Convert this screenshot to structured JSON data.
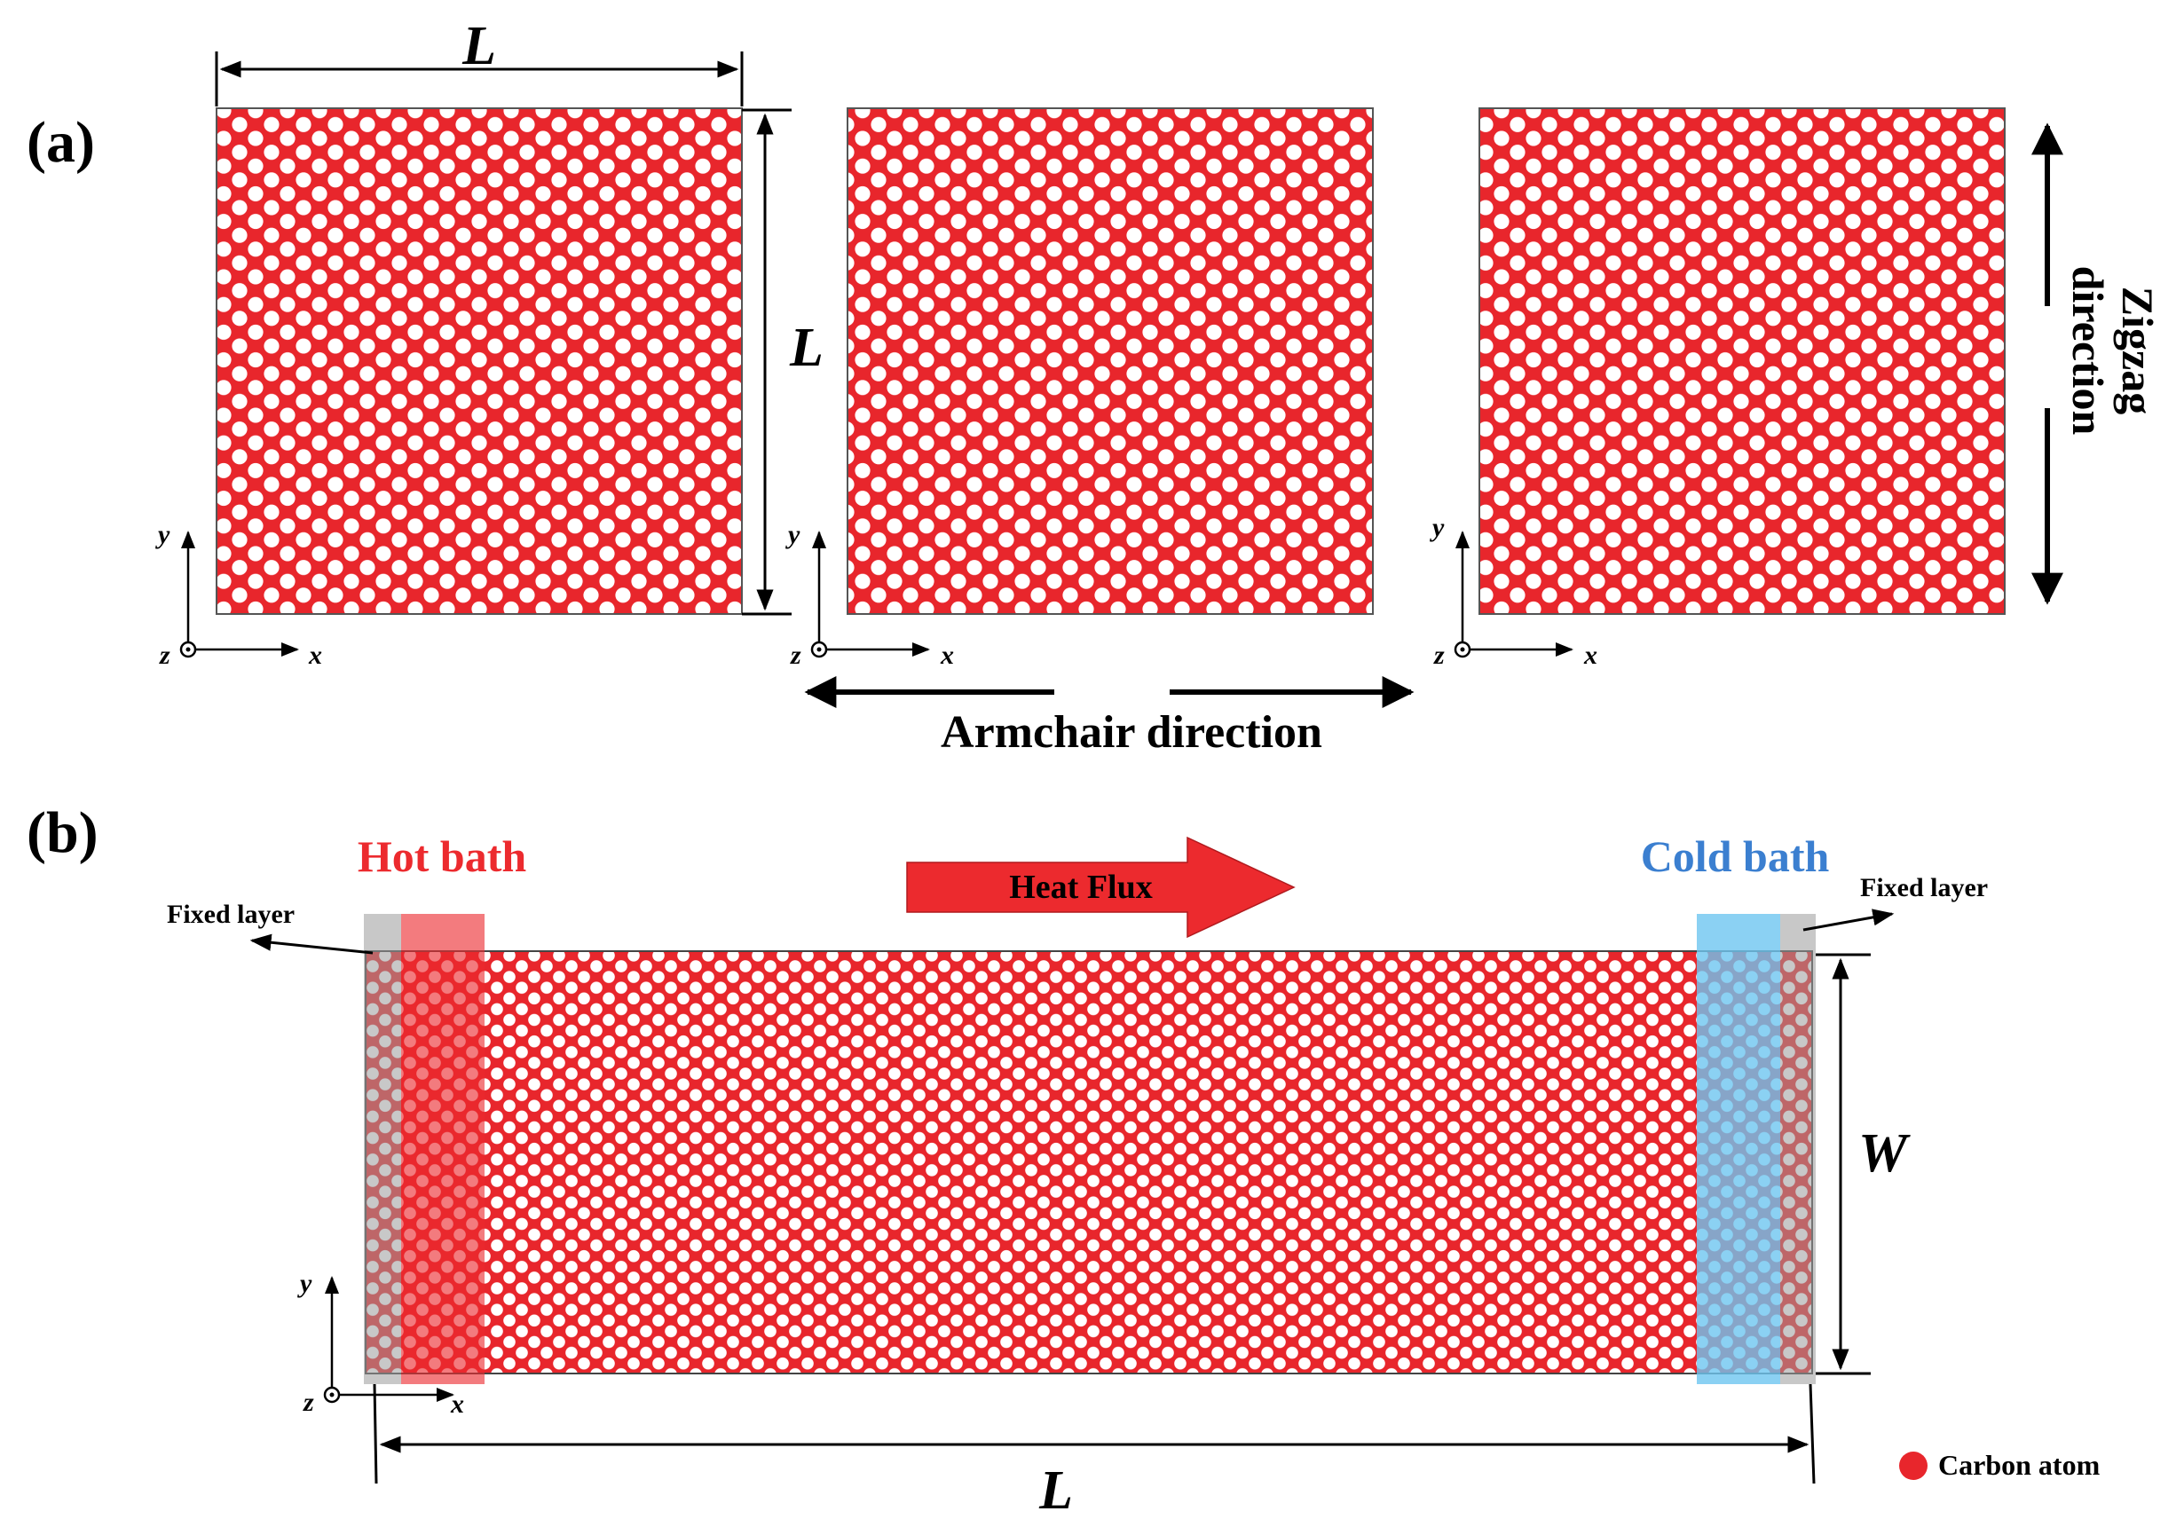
{
  "panel_a": {
    "label": "(a)",
    "dim_length": "L",
    "dim_width": "L",
    "zigzag_line1": "Zigzag",
    "zigzag_line2": "direction",
    "armchair": "Armchair direction",
    "axes": {
      "x": "x",
      "y": "y",
      "z": "z"
    }
  },
  "panel_b": {
    "label": "(b)",
    "hot_bath": "Hot bath",
    "cold_bath": "Cold bath",
    "heat_flux": "Heat Flux",
    "fixed_layer_left": "Fixed layer",
    "fixed_layer_right": "Fixed layer",
    "dim_width": "W",
    "dim_length": "L",
    "axes": {
      "x": "x",
      "y": "y",
      "z": "z"
    }
  },
  "legend": {
    "carbon_atom": "Carbon atom"
  },
  "colors": {
    "atom": "#e8262c",
    "hot": "#ec2a2e",
    "cold": "#3b8fd8",
    "cold_region": "#6ec6f0",
    "fixed": "#9a9a9a"
  }
}
